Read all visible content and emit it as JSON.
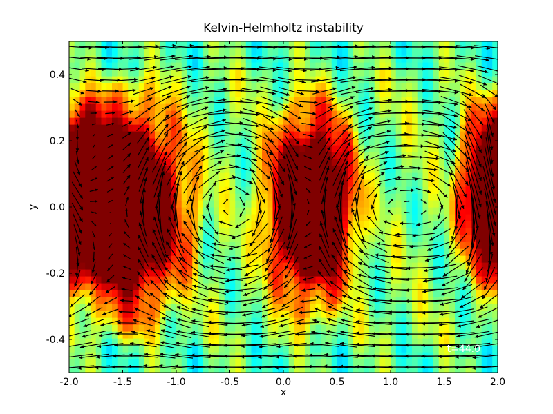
{
  "chart_data": {
    "type": "heatmap",
    "overlay": "quiver",
    "title": "Kelvin-Helmholtz instability",
    "xlabel": "x",
    "ylabel": "y",
    "xlim": [
      -2.0,
      2.0
    ],
    "ylim": [
      -0.5,
      0.5
    ],
    "xticks": [
      -2.0,
      -1.5,
      -1.0,
      -0.5,
      0.0,
      0.5,
      1.0,
      1.5,
      2.0
    ],
    "xtick_labels": [
      "-2.0",
      "-1.5",
      "-1.0",
      "-0.5",
      "0.0",
      "0.5",
      "1.0",
      "1.5",
      "2.0"
    ],
    "yticks": [
      -0.4,
      -0.2,
      0.0,
      0.2,
      0.4
    ],
    "ytick_labels": [
      "-0.4",
      "-0.2",
      "0.0",
      "0.2",
      "0.4"
    ],
    "annotation": "t=44.0",
    "annotation_position": "bottom-right",
    "colormap": "jet",
    "grid": false,
    "vortices": [
      {
        "x": -1.45,
        "y": 0.0,
        "rx": 0.48,
        "ry": 0.27
      },
      {
        "x": 0.25,
        "y": 0.0,
        "rx": 0.36,
        "ry": 0.25
      },
      {
        "x": 2.0,
        "y": 0.05,
        "rx": 0.3,
        "ry": 0.22
      }
    ]
  }
}
